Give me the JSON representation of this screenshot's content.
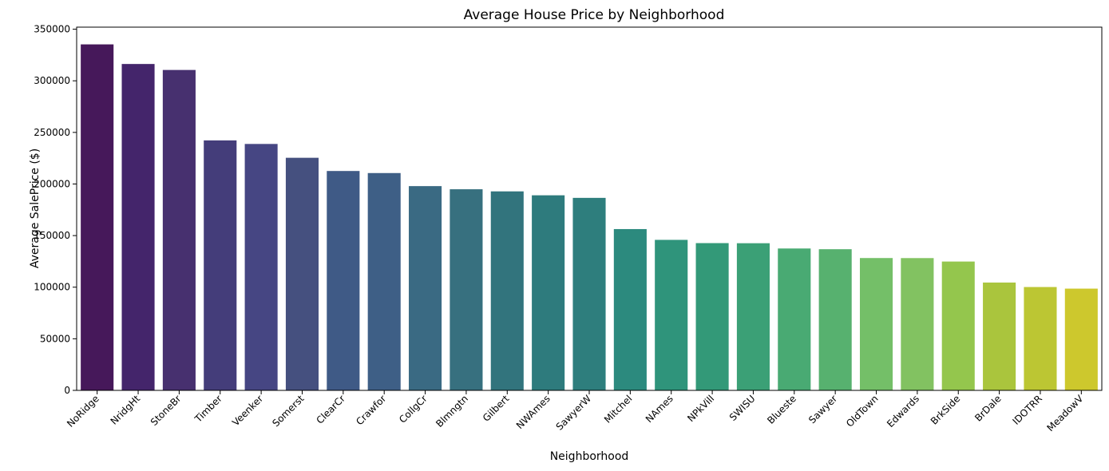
{
  "chart_data": {
    "type": "bar",
    "title": "Average House Price by Neighborhood",
    "xlabel": "Neighborhood",
    "ylabel": "Average SalePrice ($)",
    "ylim": [
      0,
      352000
    ],
    "yticks": [
      0,
      50000,
      100000,
      150000,
      200000,
      250000,
      300000,
      350000
    ],
    "ytick_labels": [
      "0",
      "50000",
      "100000",
      "150000",
      "200000",
      "250000",
      "300000",
      "350000"
    ],
    "grid": false,
    "legend": "none",
    "colormap": "viridis",
    "categories": [
      "NoRidge",
      "NridgHt",
      "StoneBr",
      "Timber",
      "Veenker",
      "Somerst",
      "ClearCr",
      "Crawfor",
      "CollgCr",
      "Blmngtn",
      "Gilbert",
      "NWAmes",
      "SawyerW",
      "Mitchel",
      "NAmes",
      "NPkVill",
      "SWISU",
      "Blueste",
      "Sawyer",
      "OldTown",
      "Edwards",
      "BrkSide",
      "BrDale",
      "IDOTRR",
      "MeadowV"
    ],
    "values": [
      335300,
      316300,
      310500,
      242250,
      238800,
      225400,
      212600,
      210600,
      197950,
      194900,
      192850,
      189050,
      186550,
      156300,
      145850,
      142700,
      142600,
      137500,
      136800,
      128250,
      128200,
      124850,
      104500,
      100150,
      98600
    ],
    "colors": [
      "#46185a",
      "#44256b",
      "#47306f",
      "#443d7a",
      "#464683",
      "#45507f",
      "#3f5a86",
      "#3e5f86",
      "#3a6a83",
      "#37707f",
      "#32747d",
      "#2e7b7d",
      "#2e7e7d",
      "#2c8a7e",
      "#2f947b",
      "#339978",
      "#3ba076",
      "#49aa73",
      "#57b16f",
      "#74bf68",
      "#82c261",
      "#94c64d",
      "#aac53d",
      "#bcc633",
      "#cdc82d"
    ]
  }
}
